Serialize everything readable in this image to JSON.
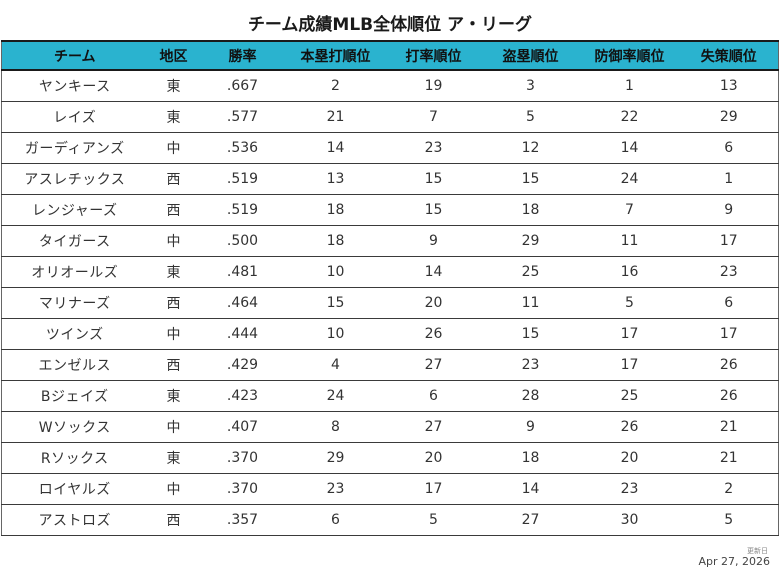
{
  "title": "チーム成績MLB全体順位 ア・リーグ",
  "columns": [
    "チーム",
    "地区",
    "勝率",
    "本塁打順位",
    "打率順位",
    "盗塁順位",
    "防御率順位",
    "失策順位"
  ],
  "rows": [
    [
      "ヤンキース",
      "東",
      ".667",
      "2",
      "19",
      "3",
      "1",
      "13"
    ],
    [
      "レイズ",
      "東",
      ".577",
      "21",
      "7",
      "5",
      "22",
      "29"
    ],
    [
      "ガーディアンズ",
      "中",
      ".536",
      "14",
      "23",
      "12",
      "14",
      "6"
    ],
    [
      "アスレチックス",
      "西",
      ".519",
      "13",
      "15",
      "15",
      "24",
      "1"
    ],
    [
      "レンジャーズ",
      "西",
      ".519",
      "18",
      "15",
      "18",
      "7",
      "9"
    ],
    [
      "タイガース",
      "中",
      ".500",
      "18",
      "9",
      "29",
      "11",
      "17"
    ],
    [
      "オリオールズ",
      "東",
      ".481",
      "10",
      "14",
      "25",
      "16",
      "23"
    ],
    [
      "マリナーズ",
      "西",
      ".464",
      "15",
      "20",
      "11",
      "5",
      "6"
    ],
    [
      "ツインズ",
      "中",
      ".444",
      "10",
      "26",
      "15",
      "17",
      "17"
    ],
    [
      "エンゼルス",
      "西",
      ".429",
      "4",
      "27",
      "23",
      "17",
      "26"
    ],
    [
      "Bジェイズ",
      "東",
      ".423",
      "24",
      "6",
      "28",
      "25",
      "26"
    ],
    [
      "Wソックス",
      "中",
      ".407",
      "8",
      "27",
      "9",
      "26",
      "21"
    ],
    [
      "Rソックス",
      "東",
      ".370",
      "29",
      "20",
      "18",
      "20",
      "21"
    ],
    [
      "ロイヤルズ",
      "中",
      ".370",
      "23",
      "17",
      "14",
      "23",
      "2"
    ],
    [
      "アストロズ",
      "西",
      ".357",
      "6",
      "5",
      "27",
      "30",
      "5"
    ]
  ],
  "footer": {
    "updated_label": "更新日",
    "updated_date": "Apr 27, 2026"
  },
  "colors": {
    "header_bg": "#2ab3cf",
    "grid_line": "#3a3a3a"
  }
}
